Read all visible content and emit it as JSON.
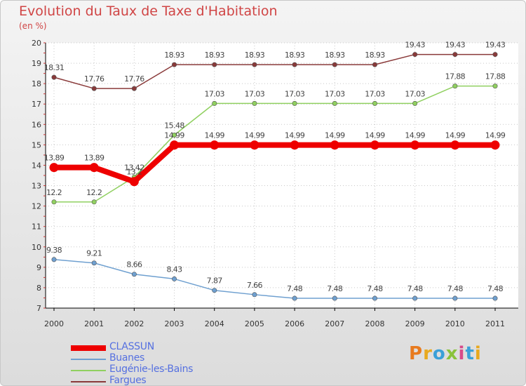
{
  "title": "Evolution du Taux de Taxe d'Habitation",
  "subtitle": "(en %)",
  "brand": {
    "text": "Proxiti"
  },
  "chart_data": {
    "type": "line",
    "title": "Evolution du Taux de Taxe d'Habitation",
    "ylabel": "(en %)",
    "xlabel": "",
    "x": [
      2000,
      2001,
      2002,
      2003,
      2004,
      2005,
      2006,
      2007,
      2008,
      2009,
      2010,
      2011
    ],
    "ylim": [
      7,
      20
    ],
    "yticks": [
      7,
      8,
      9,
      10,
      11,
      12,
      13,
      14,
      15,
      16,
      17,
      18,
      19,
      20
    ],
    "grid": true,
    "legend_position": "bottom-left",
    "series": [
      {
        "name": "CLASSUN",
        "color": "#ee0000",
        "values": [
          13.89,
          13.89,
          13.2,
          14.99,
          14.99,
          14.99,
          14.99,
          14.99,
          14.99,
          14.99,
          14.99,
          14.99
        ],
        "labels": [
          "13.89",
          "13.89",
          "13.2",
          "14.99",
          "14.99",
          "14.99",
          "14.99",
          "14.99",
          "14.99",
          "14.99",
          "14.99",
          "14.99"
        ]
      },
      {
        "name": "Buanes",
        "color": "#6fa0d0",
        "values": [
          9.38,
          9.21,
          8.66,
          8.43,
          7.87,
          7.66,
          7.48,
          7.48,
          7.48,
          7.48,
          7.48,
          7.48
        ],
        "labels": [
          "9.38",
          "9.21",
          "8.66",
          "8.43",
          "7.87",
          "7.66",
          "7.48",
          "7.48",
          "7.48",
          "7.48",
          "7.48",
          "7.48"
        ]
      },
      {
        "name": "Eugénie-les-Bains",
        "color": "#90d060",
        "values": [
          12.2,
          12.2,
          13.42,
          15.48,
          17.03,
          17.03,
          17.03,
          17.03,
          17.03,
          17.03,
          17.88,
          17.88
        ],
        "labels": [
          "12.2",
          "12.2",
          "13.42",
          "15.48",
          "17.03",
          "17.03",
          "17.03",
          "17.03",
          "17.03",
          "17.03",
          "17.88",
          "17.88"
        ]
      },
      {
        "name": "Fargues",
        "color": "#8a3a3a",
        "values": [
          18.31,
          17.76,
          17.76,
          18.93,
          18.93,
          18.93,
          18.93,
          18.93,
          18.93,
          19.43,
          19.43,
          19.43
        ],
        "labels": [
          "18.31",
          "17.76",
          "17.76",
          "18.93",
          "18.93",
          "18.93",
          "18.93",
          "18.93",
          "18.93",
          "19.43",
          "19.43",
          "19.43"
        ]
      }
    ]
  }
}
